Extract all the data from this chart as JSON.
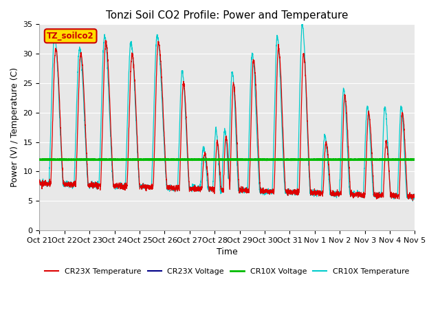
{
  "title": "Tonzi Soil CO2 Profile: Power and Temperature",
  "ylabel": "Power (V) / Temperature (C)",
  "xlabel": "Time",
  "ylim": [
    0,
    35
  ],
  "yticks": [
    0,
    5,
    10,
    15,
    20,
    25,
    30,
    35
  ],
  "xlabels": [
    "Oct 21",
    "Oct 22",
    "Oct 23",
    "Oct 24",
    "Oct 25",
    "Oct 26",
    "Oct 27",
    "Oct 28",
    "Oct 29",
    "Oct 30",
    "Oct 31",
    "Nov 1",
    "Nov 2",
    "Nov 3",
    "Nov 4",
    "Nov 5"
  ],
  "annotation_text": "TZ_soilco2",
  "annotation_color": "#cc0000",
  "annotation_bg": "#ffdd00",
  "hline_value": 12.0,
  "hline_color": "#00bb00",
  "bg_color": "#e8e8e8",
  "grid_color": "#ffffff",
  "cr23x_temp_color": "#dd0000",
  "cr23x_volt_color": "#000088",
  "cr10x_volt_color": "#00bb00",
  "cr10x_temp_color": "#00cccc",
  "title_fontsize": 11,
  "label_fontsize": 9,
  "tick_fontsize": 8
}
